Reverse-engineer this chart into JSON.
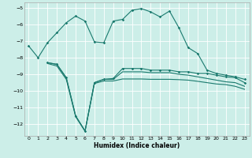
{
  "xlabel": "Humidex (Indice chaleur)",
  "bg_color": "#cceee8",
  "grid_color": "#ffffff",
  "line_color": "#1a7a6e",
  "xlim": [
    -0.5,
    23.5
  ],
  "ylim": [
    -12.7,
    -4.7
  ],
  "yticks": [
    -5,
    -6,
    -7,
    -8,
    -9,
    -10,
    -11,
    -12
  ],
  "xticks": [
    0,
    1,
    2,
    3,
    4,
    5,
    6,
    7,
    8,
    9,
    10,
    11,
    12,
    13,
    14,
    15,
    16,
    17,
    18,
    19,
    20,
    21,
    22,
    23
  ],
  "line1_x": [
    0,
    1,
    2,
    3,
    4,
    5,
    6,
    7,
    8,
    9,
    10,
    11,
    12,
    13,
    14,
    15,
    16,
    17,
    18,
    19,
    20,
    21,
    22,
    23
  ],
  "line1_y": [
    -7.3,
    -8.0,
    -7.1,
    -6.5,
    -5.9,
    -5.5,
    -5.8,
    -7.05,
    -7.1,
    -5.8,
    -5.7,
    -5.15,
    -5.05,
    -5.25,
    -5.55,
    -5.2,
    -6.2,
    -7.4,
    -7.75,
    -8.75,
    -8.95,
    -9.05,
    -9.15,
    -9.3
  ],
  "line2_x": [
    2,
    3,
    4,
    5,
    6,
    7,
    8,
    9,
    10,
    11,
    12,
    13,
    14,
    15,
    16,
    17,
    18,
    19,
    20,
    21,
    22,
    23
  ],
  "line2_y": [
    -8.3,
    -8.4,
    -9.2,
    -11.5,
    -12.4,
    -9.5,
    -9.3,
    -9.25,
    -8.65,
    -8.65,
    -8.65,
    -8.75,
    -8.75,
    -8.75,
    -8.85,
    -8.85,
    -8.95,
    -8.95,
    -9.05,
    -9.15,
    -9.2,
    -9.5
  ],
  "line3_x": [
    2,
    3,
    4,
    5,
    6,
    7,
    8,
    9,
    10,
    11,
    12,
    13,
    14,
    15,
    16,
    17,
    18,
    19,
    20,
    21,
    22,
    23
  ],
  "line3_y": [
    -8.3,
    -8.4,
    -9.2,
    -11.5,
    -12.4,
    -9.5,
    -9.3,
    -9.3,
    -8.85,
    -8.85,
    -8.85,
    -8.9,
    -8.9,
    -8.9,
    -9.0,
    -9.05,
    -9.15,
    -9.25,
    -9.35,
    -9.45,
    -9.5,
    -9.72
  ],
  "line4_x": [
    2,
    3,
    4,
    5,
    6,
    7,
    8,
    9,
    10,
    11,
    12,
    13,
    14,
    15,
    16,
    17,
    18,
    19,
    20,
    21,
    22,
    23
  ],
  "line4_y": [
    -8.35,
    -8.5,
    -9.3,
    -11.55,
    -12.42,
    -9.55,
    -9.4,
    -9.4,
    -9.28,
    -9.28,
    -9.28,
    -9.3,
    -9.3,
    -9.3,
    -9.32,
    -9.35,
    -9.42,
    -9.5,
    -9.58,
    -9.62,
    -9.72,
    -9.9
  ]
}
